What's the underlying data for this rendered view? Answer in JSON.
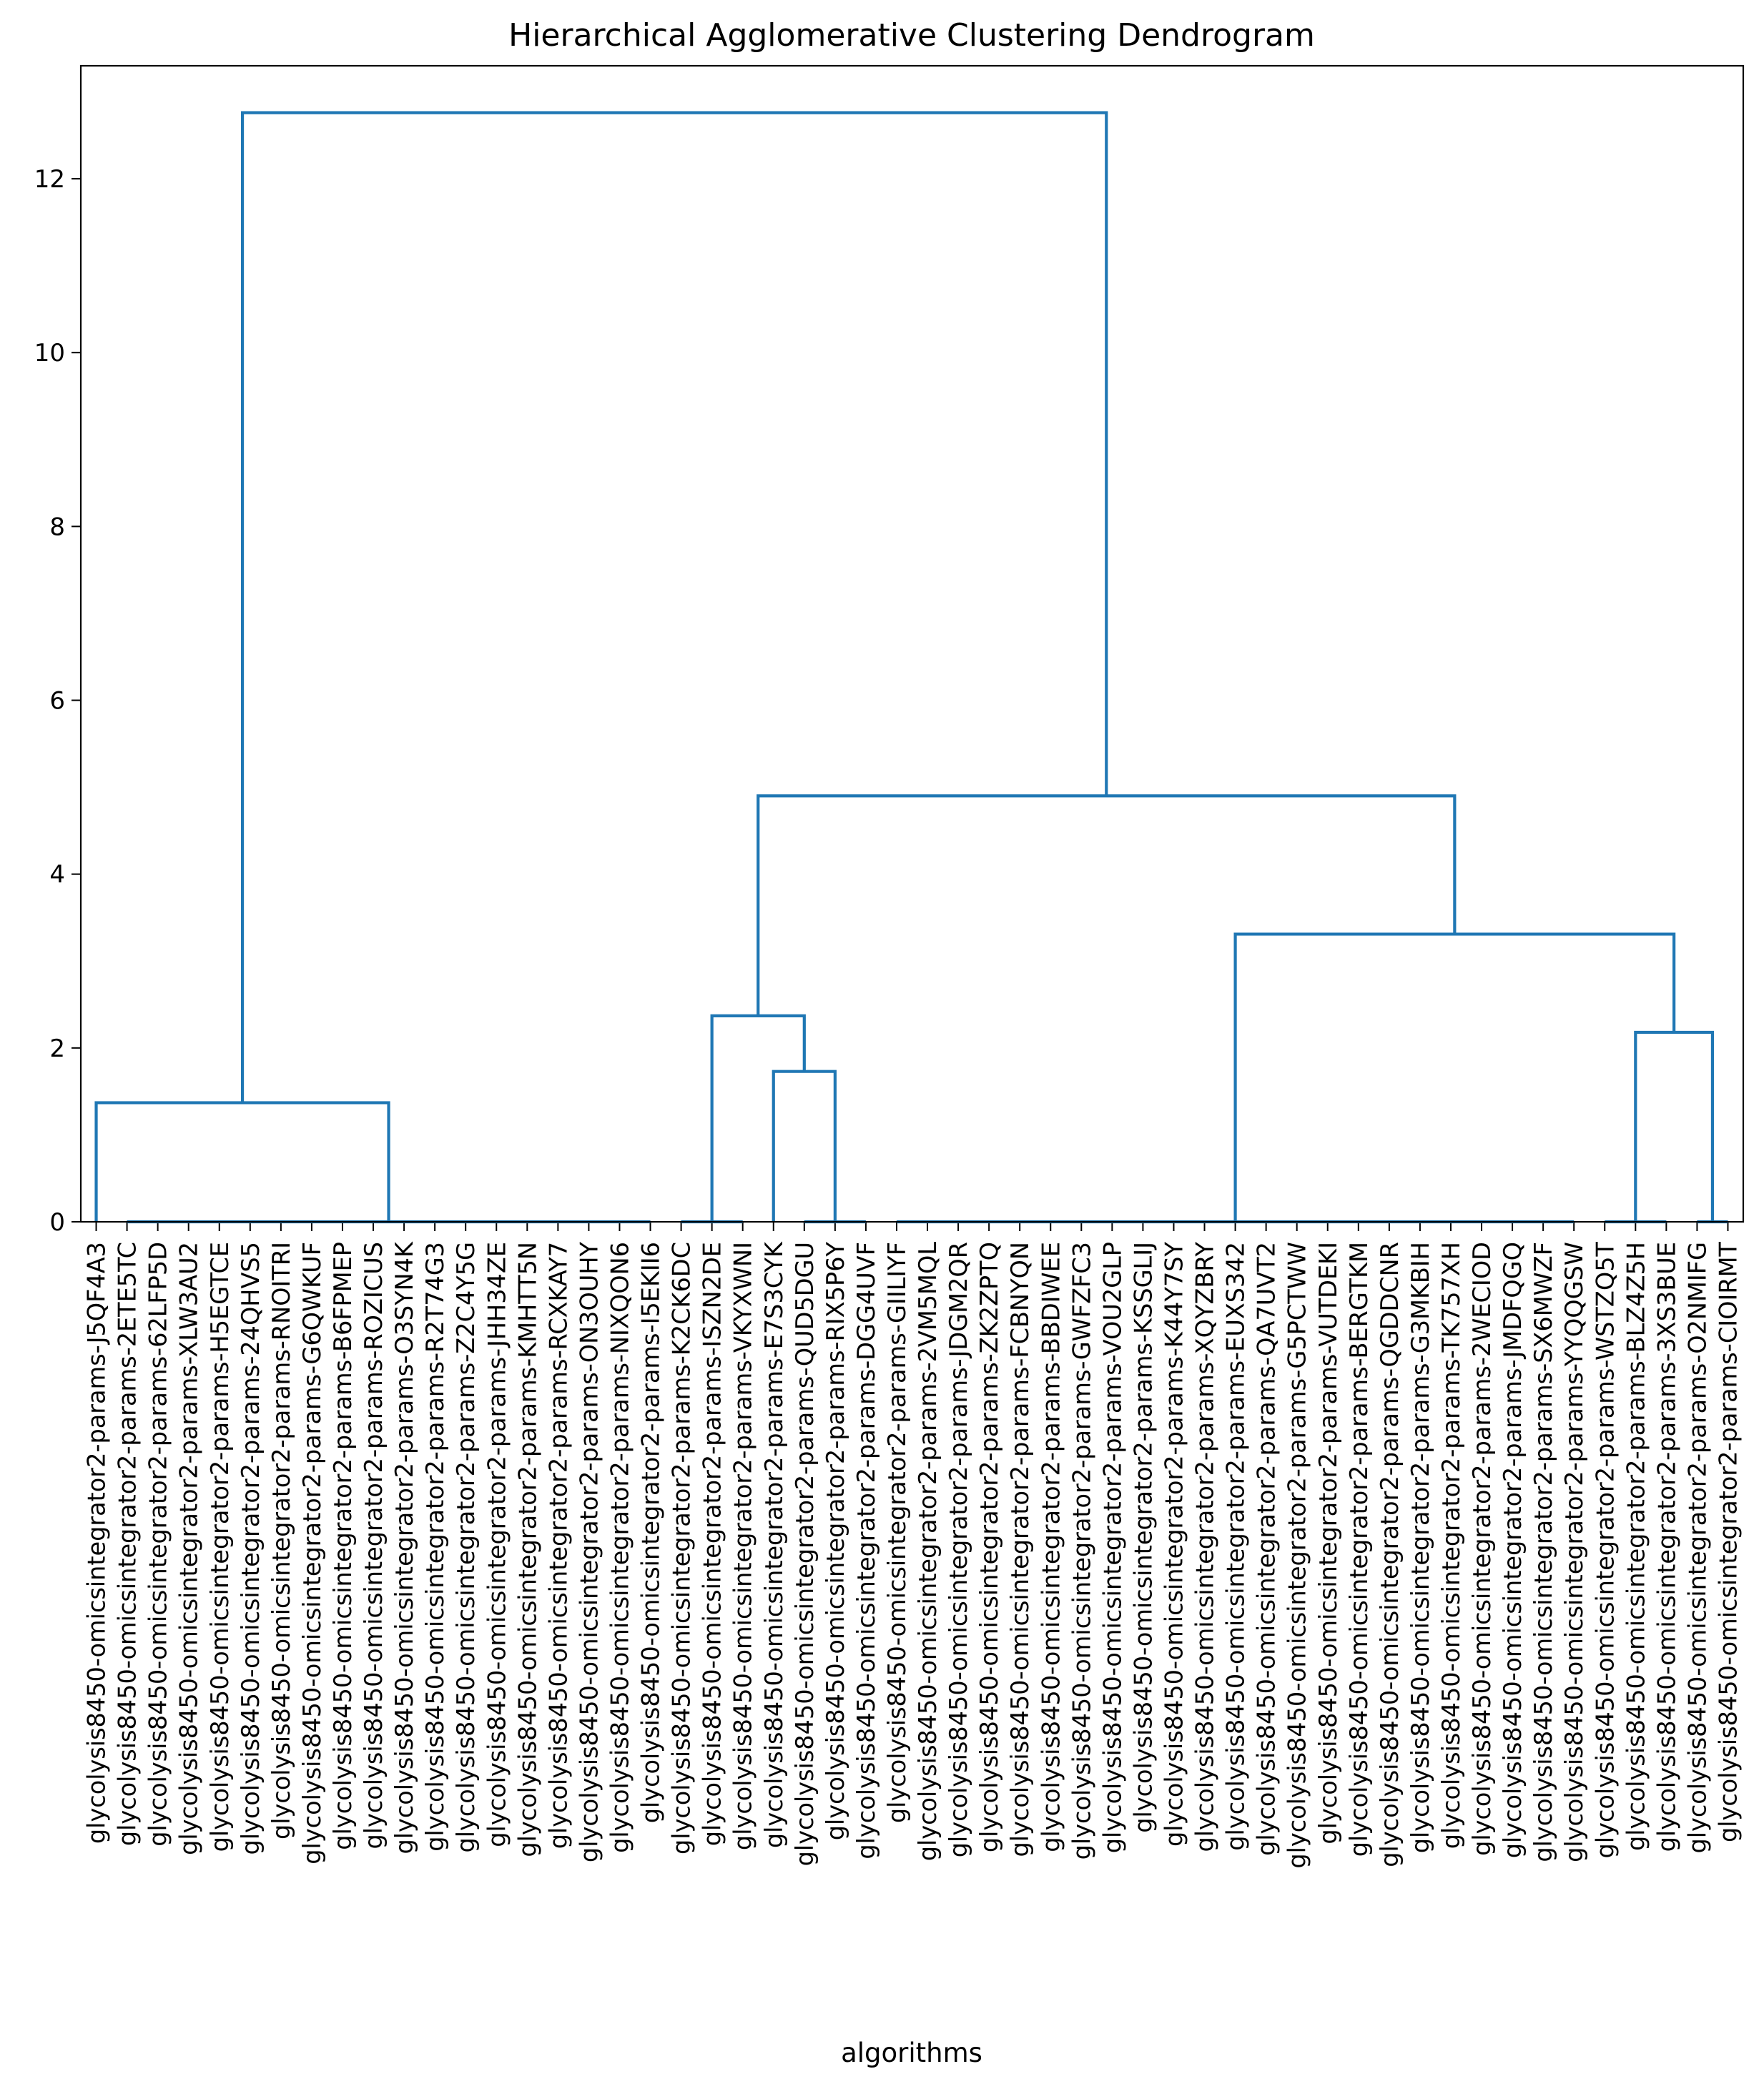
{
  "chart_data": {
    "type": "dendrogram",
    "title": "Hierarchical Agglomerative Clustering Dendrogram",
    "xlabel": "algorithms",
    "ylabel": "",
    "ylim": [
      0,
      13.3
    ],
    "yticks": [
      0,
      2,
      4,
      6,
      8,
      10,
      12
    ],
    "line_color": "#1f77b4",
    "leaves": [
      "glycolysis8450-omicsintegrator2-params-J5QF4A3",
      "glycolysis8450-omicsintegrator2-params-2ETE5TC",
      "glycolysis8450-omicsintegrator2-params-62LFP5D",
      "glycolysis8450-omicsintegrator2-params-XLW3AU2",
      "glycolysis8450-omicsintegrator2-params-H5EGTCE",
      "glycolysis8450-omicsintegrator2-params-24QHVS5",
      "glycolysis8450-omicsintegrator2-params-RNOITRI",
      "glycolysis8450-omicsintegrator2-params-G6QWKUF",
      "glycolysis8450-omicsintegrator2-params-B6FPMEP",
      "glycolysis8450-omicsintegrator2-params-ROZICUS",
      "glycolysis8450-omicsintegrator2-params-O3SYN4K",
      "glycolysis8450-omicsintegrator2-params-R2T74G3",
      "glycolysis8450-omicsintegrator2-params-Z2C4Y5G",
      "glycolysis8450-omicsintegrator2-params-JHH34ZE",
      "glycolysis8450-omicsintegrator2-params-KMHTT5N",
      "glycolysis8450-omicsintegrator2-params-RCXKAY7",
      "glycolysis8450-omicsintegrator2-params-ON3OUHY",
      "glycolysis8450-omicsintegrator2-params-NIXQON6",
      "glycolysis8450-omicsintegrator2-params-I5EKII6",
      "glycolysis8450-omicsintegrator2-params-K2CK6DC",
      "glycolysis8450-omicsintegrator2-params-ISZN2DE",
      "glycolysis8450-omicsintegrator2-params-VKYXWNI",
      "glycolysis8450-omicsintegrator2-params-E7S3CYK",
      "glycolysis8450-omicsintegrator2-params-QUD5DGU",
      "glycolysis8450-omicsintegrator2-params-RIX5P6Y",
      "glycolysis8450-omicsintegrator2-params-DGG4UVF",
      "glycolysis8450-omicsintegrator2-params-GIILIYF",
      "glycolysis8450-omicsintegrator2-params-2VM5MQL",
      "glycolysis8450-omicsintegrator2-params-JDGM2QR",
      "glycolysis8450-omicsintegrator2-params-ZK2ZPTQ",
      "glycolysis8450-omicsintegrator2-params-FCBNYQN",
      "glycolysis8450-omicsintegrator2-params-BBDIWEE",
      "glycolysis8450-omicsintegrator2-params-GWFZFC3",
      "glycolysis8450-omicsintegrator2-params-VOU2GLP",
      "glycolysis8450-omicsintegrator2-params-KSSGLIJ",
      "glycolysis8450-omicsintegrator2-params-K44Y7SY",
      "glycolysis8450-omicsintegrator2-params-XQYZBRY",
      "glycolysis8450-omicsintegrator2-params-EUXS342",
      "glycolysis8450-omicsintegrator2-params-QA7UVT2",
      "glycolysis8450-omicsintegrator2-params-G5PCTWW",
      "glycolysis8450-omicsintegrator2-params-VUTDEKI",
      "glycolysis8450-omicsintegrator2-params-BERGTKM",
      "glycolysis8450-omicsintegrator2-params-QGDDCNR",
      "glycolysis8450-omicsintegrator2-params-G3MKBIH",
      "glycolysis8450-omicsintegrator2-params-TK757XH",
      "glycolysis8450-omicsintegrator2-params-2WECIOD",
      "glycolysis8450-omicsintegrator2-params-JMDFQGQ",
      "glycolysis8450-omicsintegrator2-params-SX6MWZF",
      "glycolysis8450-omicsintegrator2-params-YYQQGSW",
      "glycolysis8450-omicsintegrator2-params-WSTZQ5T",
      "glycolysis8450-omicsintegrator2-params-BLZ4Z5H",
      "glycolysis8450-omicsintegrator2-params-3XS3BUE",
      "glycolysis8450-omicsintegrator2-params-O2NMIFG",
      "glycolysis8450-omicsintegrator2-params-CIOIRMT"
    ],
    "merges": [
      {
        "left": {
          "leaf": 0
        },
        "right": {
          "from": 1,
          "to": 18
        },
        "height": 1.37
      },
      {
        "left": {
          "leaf": 22
        },
        "right": {
          "from": 23,
          "to": 25
        },
        "height": 1.73
      },
      {
        "left": {
          "from": 19,
          "to": 21
        },
        "right": {
          "merge": 1
        },
        "height": 2.37
      },
      {
        "left": {
          "from": 49,
          "to": 51
        },
        "right": {
          "from": 52,
          "to": 53
        },
        "height": 2.18
      },
      {
        "left": {
          "from": 26,
          "to": 48
        },
        "right": {
          "merge": 3
        },
        "height": 3.31
      },
      {
        "left": {
          "merge": 2
        },
        "right": {
          "merge": 4
        },
        "height": 4.9
      },
      {
        "left": {
          "merge": 0
        },
        "right": {
          "merge": 5
        },
        "height": 12.76
      }
    ],
    "zero_height_groups": [
      {
        "from": 1,
        "to": 18
      },
      {
        "from": 19,
        "to": 21
      },
      {
        "from": 23,
        "to": 25
      },
      {
        "from": 26,
        "to": 48
      },
      {
        "from": 49,
        "to": 51
      },
      {
        "from": 52,
        "to": 53
      }
    ]
  }
}
